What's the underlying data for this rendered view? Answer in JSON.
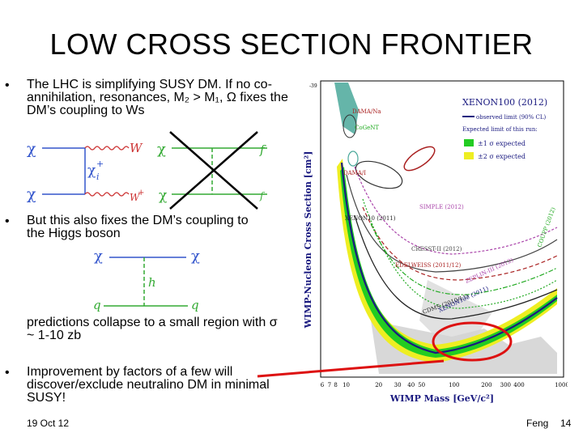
{
  "slide": {
    "title": "LOW CROSS SECTION FRONTIER",
    "bullet_symbol": "•",
    "bullet1": "The LHC is simplifying SUSY DM. If no co-annihilation, resonances, M₂ > M₁, Ω fixes the DM’s coupling to Ws",
    "bullet2": "But this also fixes the DM’s coupling to the Higgs boson",
    "bullet2_cont": "predictions collapse to a small region with σ ~ 1-10 zb",
    "bullet3": "Improvement by factors of a few will discover/exclude neutralino DM in minimal SUSY!",
    "date": "19 Oct 12",
    "author": "Feng",
    "page": "14"
  },
  "diagram_ww": {
    "chi_in_top": "χ",
    "chi_in_bottom": "χ",
    "chi_plus": "χ",
    "chi_plus_sup": "+",
    "chi_plus_sub": "i",
    "w_top": "W",
    "w_bottom": "W",
    "w_bottom_sup": "+",
    "chi_right_top": "χ",
    "chi_right_bottom": "χ",
    "f_top": "f",
    "f_bottom": "f"
  },
  "diagram_higgs": {
    "chi_left": "χ",
    "chi_right": "χ",
    "h": "h",
    "q_left": "q",
    "q_right": "q"
  },
  "plot": {
    "ylabel": "WIMP-Nucleon Cross Section [cm²]",
    "xlabel": "WIMP Mass [GeV/c²]",
    "y_exp_top": "-39",
    "x_ticks": [
      "6",
      "7",
      "8",
      "10",
      "20",
      "30",
      "40",
      "50",
      "100",
      "200",
      "300",
      "400",
      "1000"
    ],
    "legend_title": "XENON100 (2012)",
    "legend_observed": "observed limit (90% CL)",
    "legend_expected_title": "Expected limit of this run:",
    "legend_1sigma": "±1 σ expected",
    "legend_2sigma": "±2 σ expected",
    "labels": {
      "dama_na": "DAMA/Na",
      "cogent": "CoGeNT",
      "dama_i": "DAMA/I",
      "simple": "SIMPLE (2012)",
      "cresst": "CRESST-II (2012)",
      "coupp": "COUPP (2012)",
      "zeplin": "ZEPLIN-III (2012)",
      "edelweiss": "EDELWEISS (2011/12)",
      "cdms": "CDMS (2010/11)",
      "xenon100_2011": "XENON100 (2011)",
      "xenon10": "XENON10 (2011)"
    },
    "colors": {
      "observed": "#1a1a80",
      "band_1sigma": "#22cc22",
      "band_2sigma": "#eeee22",
      "dama": "#4aa89a",
      "cresst": "#aa2222",
      "highlight": "#dd1111"
    }
  }
}
